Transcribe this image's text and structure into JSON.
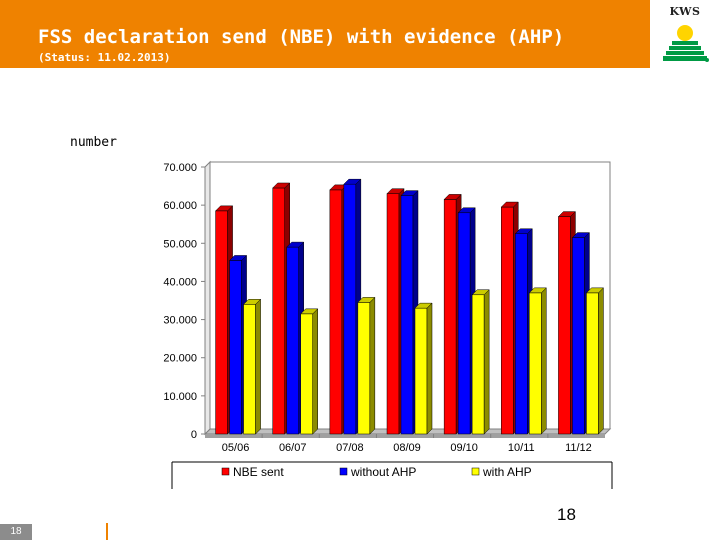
{
  "header": {
    "title": "FSS declaration send (NBE) with evidence (AHP)",
    "subtitle": "(Status: 11.02.2013)",
    "accent_color": "#ef8200"
  },
  "logo": {
    "text": "KWS",
    "icon": "kws-logo"
  },
  "y_unit_label": "number",
  "page_number": "18",
  "footer_number": "18",
  "chart_data": {
    "type": "bar",
    "title": "",
    "xlabel": "",
    "ylabel": "number",
    "categories": [
      "05/06",
      "06/07",
      "07/08",
      "08/09",
      "09/10",
      "10/11",
      "11/12"
    ],
    "ylim": [
      0,
      70000
    ],
    "yticks": [
      0,
      10000,
      20000,
      30000,
      40000,
      50000,
      60000,
      70000
    ],
    "ytick_labels": [
      "0",
      "10.000",
      "20.000",
      "30.000",
      "40.000",
      "50.000",
      "60.000",
      "70.000"
    ],
    "grid": false,
    "legend_position": "bottom",
    "series": [
      {
        "name": "NBE sent",
        "color": "#ff0000",
        "values": [
          58500,
          64500,
          64000,
          63000,
          61500,
          59500,
          57000
        ]
      },
      {
        "name": "without AHP",
        "color": "#0000ff",
        "values": [
          45500,
          49000,
          65500,
          62500,
          58000,
          52500,
          51500
        ]
      },
      {
        "name": "with AHP",
        "color": "#ffff00",
        "values": [
          34000,
          31500,
          34500,
          33000,
          36500,
          37000,
          37000
        ]
      }
    ]
  }
}
